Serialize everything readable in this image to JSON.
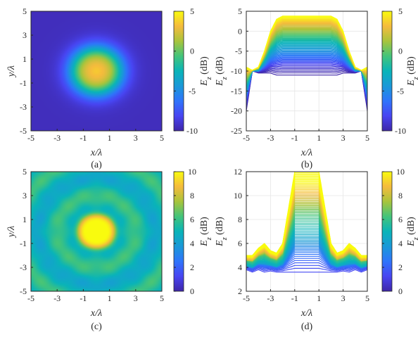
{
  "colors": {
    "parula_low": "#3e26a8",
    "parula_high": "#f9fb0e",
    "axis": "#262626",
    "grid": "#e6e6e6"
  },
  "chart_data": [
    {
      "panel": "(a)",
      "type": "heatmap",
      "xlabel": "x/λ",
      "ylabel": "y/λ",
      "xlim": [
        -5,
        5
      ],
      "ylim": [
        -5,
        5
      ],
      "xticks": [
        "-5",
        "-3",
        "-1",
        "1",
        "3",
        "5"
      ],
      "yticks": [
        "-5",
        "-3",
        "-1",
        "1",
        "3",
        "5"
      ],
      "colorbar": {
        "label": "E_z (dB)",
        "clim": [
          -10,
          5
        ],
        "ticks": [
          "5",
          "0",
          "-5",
          "-10"
        ]
      },
      "field": {
        "peak_db": 3.8,
        "plateau_radius": 1.8,
        "fall_width": 1.3,
        "floor_db": -9.5,
        "ripple_db": 0
      }
    },
    {
      "panel": "(b)",
      "type": "line",
      "xlabel": "x/λ",
      "ylabel": "E_z (dB)",
      "xlim": [
        -5,
        5
      ],
      "ylim": [
        -25,
        5
      ],
      "xticks": [
        "-5",
        "-3",
        "-1",
        "1",
        "3",
        "5"
      ],
      "yticks": [
        "5",
        "0",
        "-5",
        "-10",
        "-15",
        "-20",
        "-25"
      ],
      "grid": true,
      "colorbar": {
        "label": "E_z (dB)",
        "clim": [
          -10,
          5
        ],
        "ticks": [
          "5",
          "0",
          "-5",
          "-10"
        ]
      },
      "profile": {
        "x": [
          -5,
          -4.5,
          -4,
          -3.5,
          -3,
          -2.5,
          -2,
          -1.5,
          -1,
          -0.5,
          0,
          0.5,
          1,
          1.5,
          2,
          2.5,
          3,
          3.5,
          4,
          4.5,
          5
        ],
        "max_db": [
          -9,
          -9.8,
          -9,
          -5,
          0,
          3,
          3.8,
          3.8,
          3.8,
          3.8,
          3.8,
          3.8,
          3.8,
          3.8,
          3.8,
          3,
          0,
          -5,
          -9,
          -9.8,
          -9
        ],
        "min_db": [
          -20,
          -10,
          -10.5,
          -10.5,
          -10.5,
          -11,
          -11,
          -11,
          -11,
          -11,
          -11,
          -11,
          -11,
          -11,
          -11,
          -11,
          -10.5,
          -10.5,
          -10.5,
          -10,
          -20
        ]
      }
    },
    {
      "panel": "(c)",
      "type": "heatmap",
      "xlabel": "x/λ",
      "ylabel": "y/λ",
      "xlim": [
        -5,
        5
      ],
      "ylim": [
        -5,
        5
      ],
      "xticks": [
        "-5",
        "-3",
        "-1",
        "1",
        "3",
        "5"
      ],
      "yticks": [
        "-5",
        "-3",
        "-1",
        "1",
        "3",
        "5"
      ],
      "colorbar": {
        "label": "E_z (dB)",
        "clim": [
          0,
          10
        ],
        "ticks": [
          "10",
          "8",
          "6",
          "4",
          "2",
          "0"
        ]
      },
      "field": {
        "peak_db": 10.2,
        "plateau_radius": 1.45,
        "fall_width": 0.5,
        "floor_db": 5.2,
        "ripple_db": 0.9
      }
    },
    {
      "panel": "(d)",
      "type": "line",
      "xlabel": "x/λ",
      "ylabel": "E_z (dB)",
      "xlim": [
        -5,
        5
      ],
      "ylim": [
        2,
        12
      ],
      "xticks": [
        "-5",
        "-3",
        "-1",
        "1",
        "3",
        "5"
      ],
      "yticks": [
        "12",
        "10",
        "8",
        "6",
        "4",
        "2"
      ],
      "grid": true,
      "colorbar": {
        "label": "E_z (dB)",
        "clim": [
          0,
          10
        ],
        "ticks": [
          "10",
          "8",
          "6",
          "4",
          "2",
          "0"
        ]
      },
      "profile": {
        "x": [
          -5,
          -4.5,
          -4,
          -3.5,
          -3,
          -2.5,
          -2,
          -1.5,
          -1,
          -0.5,
          0,
          0.5,
          1,
          1.5,
          2,
          2.5,
          3,
          3.5,
          4,
          4.5,
          5
        ],
        "max_db": [
          5,
          5,
          5.6,
          6,
          5.4,
          5.2,
          6,
          9,
          12,
          12,
          12,
          12,
          12,
          9,
          6,
          5.2,
          5.4,
          6,
          5.6,
          5,
          5
        ],
        "min_db": [
          3.8,
          3.6,
          3.8,
          3.6,
          3.7,
          3.6,
          3.6,
          3.6,
          3.6,
          3.6,
          3.6,
          3.6,
          3.6,
          3.6,
          3.6,
          3.6,
          3.7,
          3.6,
          3.8,
          3.6,
          3.8
        ]
      }
    }
  ],
  "captions": [
    "(a)",
    "(b)",
    "(c)",
    "(d)"
  ],
  "labels": {
    "x": "x/λ",
    "y": "y/λ",
    "ez_main": "E",
    "ez_sub": "z",
    "ez_unit": " (dB)"
  }
}
